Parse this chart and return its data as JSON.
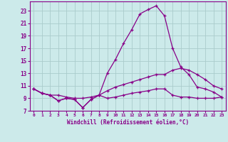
{
  "xlabel": "Windchill (Refroidissement éolien,°C)",
  "bg_color": "#cceaea",
  "grid_color": "#aacccc",
  "line_color": "#880088",
  "xlim": [
    -0.5,
    23.5
  ],
  "ylim": [
    7,
    24.5
  ],
  "xticks": [
    0,
    1,
    2,
    3,
    4,
    5,
    6,
    7,
    8,
    9,
    10,
    11,
    12,
    13,
    14,
    15,
    16,
    17,
    18,
    19,
    20,
    21,
    22,
    23
  ],
  "yticks": [
    7,
    9,
    11,
    13,
    15,
    17,
    19,
    21,
    23
  ],
  "line1_y": [
    10.5,
    9.8,
    9.5,
    8.6,
    9.0,
    8.8,
    7.5,
    8.8,
    9.5,
    13.0,
    15.2,
    17.8,
    20.0,
    22.5,
    23.2,
    23.8,
    22.2,
    17.0,
    14.0,
    12.8,
    10.8,
    10.5,
    10.0,
    9.2
  ],
  "line2_y": [
    10.5,
    9.8,
    9.5,
    9.5,
    9.2,
    9.0,
    9.0,
    9.2,
    9.5,
    10.2,
    10.8,
    11.2,
    11.6,
    12.0,
    12.4,
    12.8,
    12.8,
    13.5,
    13.8,
    13.5,
    12.8,
    12.0,
    11.0,
    10.5
  ],
  "line3_y": [
    10.5,
    9.8,
    9.5,
    8.6,
    9.0,
    8.8,
    7.5,
    8.8,
    9.5,
    9.0,
    9.2,
    9.5,
    9.8,
    10.0,
    10.2,
    10.5,
    10.5,
    9.5,
    9.2,
    9.2,
    9.0,
    9.0,
    9.0,
    9.2
  ]
}
